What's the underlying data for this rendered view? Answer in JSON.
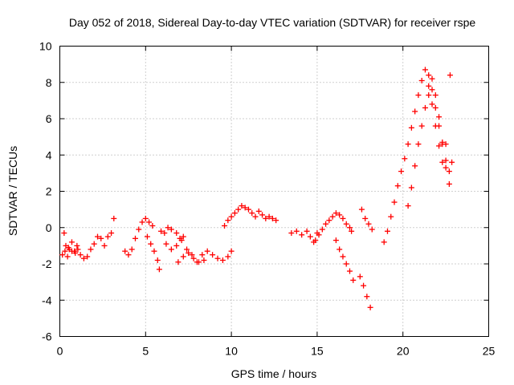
{
  "chart_data": {
    "type": "scatter",
    "title": "Day 052 of 2018, Sidereal Day-to-day VTEC variation (SDTVAR) for receiver rspe",
    "xlabel": "GPS time / hours",
    "ylabel": "SDTVAR / TECUs",
    "xlim": [
      0,
      25
    ],
    "ylim": [
      -6,
      10
    ],
    "xticks": [
      0,
      5,
      10,
      15,
      20,
      25
    ],
    "yticks": [
      -6,
      -4,
      -2,
      0,
      2,
      4,
      6,
      8,
      10
    ],
    "xtick_labels": [
      "0",
      "5",
      "10",
      "15",
      "20",
      "25"
    ],
    "ytick_labels": [
      "-6",
      "-4",
      "-2",
      "0",
      "2",
      "4",
      "6",
      "8",
      "10"
    ],
    "grid": true,
    "marker": "+",
    "color": "#ff0000",
    "series": [
      {
        "name": "SDTVAR",
        "x": [
          0.15,
          0.25,
          0.35,
          0.45,
          0.55,
          0.7,
          0.85,
          1.0,
          1.2,
          1.4,
          1.6,
          1.8,
          2.0,
          2.2,
          2.4,
          2.6,
          2.8,
          3.0,
          3.15,
          0.3,
          0.5,
          0.7,
          0.9,
          1.05,
          3.8,
          4.0,
          4.2,
          4.4,
          4.6,
          4.8,
          5.0,
          5.2,
          5.4,
          5.1,
          5.3,
          5.5,
          5.7,
          5.8,
          5.9,
          6.1,
          6.3,
          6.5,
          6.8,
          7.0,
          7.2,
          6.2,
          6.5,
          6.8,
          7.1,
          7.4,
          7.7,
          8.0,
          8.3,
          8.6,
          8.9,
          9.2,
          9.5,
          9.8,
          10.0,
          6.9,
          7.2,
          7.5,
          7.8,
          8.1,
          8.4,
          9.6,
          9.8,
          10.0,
          10.2,
          10.4,
          10.6,
          10.8,
          11.0,
          11.2,
          11.4,
          11.6,
          11.8,
          12.0,
          12.2,
          12.4,
          12.6,
          13.5,
          13.8,
          14.1,
          14.4,
          14.6,
          14.8,
          15.0,
          14.9,
          15.1,
          15.3,
          15.5,
          15.7,
          15.9,
          16.1,
          16.3,
          16.5,
          16.7,
          16.9,
          17.0,
          16.1,
          16.3,
          16.5,
          16.7,
          16.9,
          17.1,
          17.5,
          17.7,
          17.9,
          18.1,
          17.6,
          17.8,
          18.0,
          18.2,
          18.9,
          19.1,
          19.3,
          19.5,
          19.7,
          19.9,
          20.1,
          20.3,
          20.5,
          20.7,
          20.9,
          21.1,
          21.3,
          21.5,
          21.7,
          21.9,
          22.1,
          22.3,
          22.5,
          22.7,
          22.85,
          20.3,
          20.5,
          20.7,
          20.9,
          21.1,
          21.3,
          21.5,
          21.7,
          21.9,
          22.1,
          22.3,
          22.5,
          22.75,
          21.5,
          21.7,
          21.9,
          22.1,
          22.3,
          22.5,
          22.7
        ],
        "y": [
          -1.5,
          -0.3,
          -1.0,
          -1.6,
          -1.2,
          -0.8,
          -1.3,
          -1.0,
          -1.5,
          -1.7,
          -1.6,
          -1.2,
          -0.9,
          -0.5,
          -0.6,
          -1.0,
          -0.5,
          -0.3,
          0.5,
          -1.3,
          -1.1,
          -1.3,
          -1.4,
          -1.2,
          -1.3,
          -1.5,
          -1.2,
          -0.6,
          -0.1,
          0.3,
          0.5,
          0.3,
          0.1,
          -0.5,
          -0.9,
          -1.3,
          -1.8,
          -2.3,
          -0.2,
          -0.3,
          0.0,
          -0.1,
          -0.3,
          -0.6,
          -0.5,
          -0.9,
          -1.2,
          -1.0,
          -0.7,
          -1.2,
          -1.5,
          -1.9,
          -1.5,
          -1.3,
          -1.5,
          -1.7,
          -1.8,
          -1.6,
          -1.3,
          -1.9,
          -1.6,
          -1.4,
          -1.7,
          -1.9,
          -1.8,
          0.1,
          0.4,
          0.6,
          0.8,
          1.0,
          1.2,
          1.1,
          1.0,
          0.8,
          0.6,
          0.9,
          0.7,
          0.5,
          0.6,
          0.5,
          0.4,
          -0.3,
          -0.2,
          -0.4,
          -0.2,
          -0.5,
          -0.8,
          -0.3,
          -0.7,
          -0.4,
          -0.1,
          0.2,
          0.4,
          0.6,
          0.8,
          0.7,
          0.5,
          0.2,
          0.0,
          -0.2,
          -0.7,
          -1.2,
          -1.6,
          -2.0,
          -2.4,
          -2.9,
          -2.7,
          -3.2,
          -3.8,
          -4.4,
          1.0,
          0.5,
          0.2,
          -0.1,
          -0.8,
          -0.2,
          0.6,
          1.4,
          2.3,
          3.1,
          3.8,
          4.6,
          5.5,
          6.4,
          7.3,
          8.1,
          8.7,
          8.4,
          7.6,
          6.6,
          5.6,
          4.6,
          3.7,
          3.1,
          3.6,
          1.2,
          2.2,
          3.4,
          4.6,
          5.6,
          6.6,
          7.3,
          6.8,
          5.6,
          4.5,
          3.6,
          4.6,
          8.4,
          7.8,
          8.2,
          7.3,
          6.1,
          4.7,
          3.3,
          2.4
        ]
      }
    ]
  }
}
